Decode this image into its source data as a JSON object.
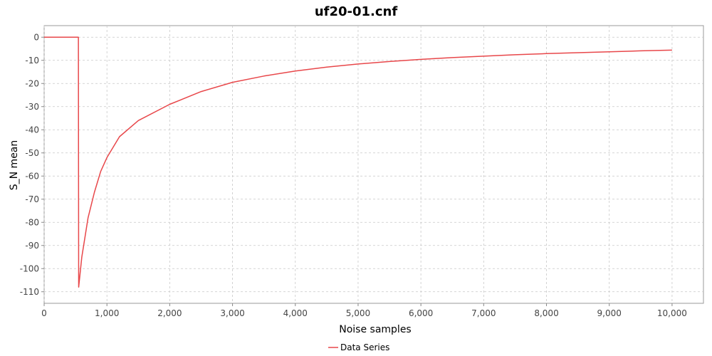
{
  "chart_data": {
    "type": "line",
    "title": "uf20-01.cnf",
    "xlabel": "Noise samples",
    "ylabel": "S_N mean",
    "xlim": [
      0,
      10500
    ],
    "ylim": [
      -115,
      5
    ],
    "x_ticks": [
      0,
      1000,
      2000,
      3000,
      4000,
      5000,
      6000,
      7000,
      8000,
      9000,
      10000
    ],
    "x_tick_labels": [
      "0",
      "1,000",
      "2,000",
      "3,000",
      "4,000",
      "5,000",
      "6,000",
      "7,000",
      "8,000",
      "9,000",
      "10,000"
    ],
    "y_ticks": [
      0,
      -10,
      -20,
      -30,
      -40,
      -50,
      -60,
      -70,
      -80,
      -90,
      -100,
      -110
    ],
    "y_tick_labels": [
      "0",
      "-10",
      "-20",
      "-30",
      "-40",
      "-50",
      "-60",
      "-70",
      "-80",
      "-90",
      "-100",
      "-110"
    ],
    "grid": true,
    "legend_position": "bottom-center",
    "series": [
      {
        "name": "Data Series",
        "color": "#e8474a",
        "x": [
          0,
          540,
          545,
          550,
          600,
          700,
          800,
          900,
          1000,
          1200,
          1500,
          2000,
          2500,
          3000,
          3500,
          4000,
          4500,
          5000,
          5500,
          6000,
          6500,
          7000,
          7500,
          8000,
          8500,
          9000,
          9500,
          10000
        ],
        "y": [
          0,
          0,
          0,
          -108,
          -95,
          -78,
          -67,
          -58,
          -52,
          -43,
          -36,
          -29,
          -23.5,
          -19.5,
          -16.8,
          -14.6,
          -12.9,
          -11.6,
          -10.5,
          -9.6,
          -8.8,
          -8.2,
          -7.6,
          -7.1,
          -6.7,
          -6.3,
          -5.9,
          -5.6
        ]
      }
    ]
  }
}
